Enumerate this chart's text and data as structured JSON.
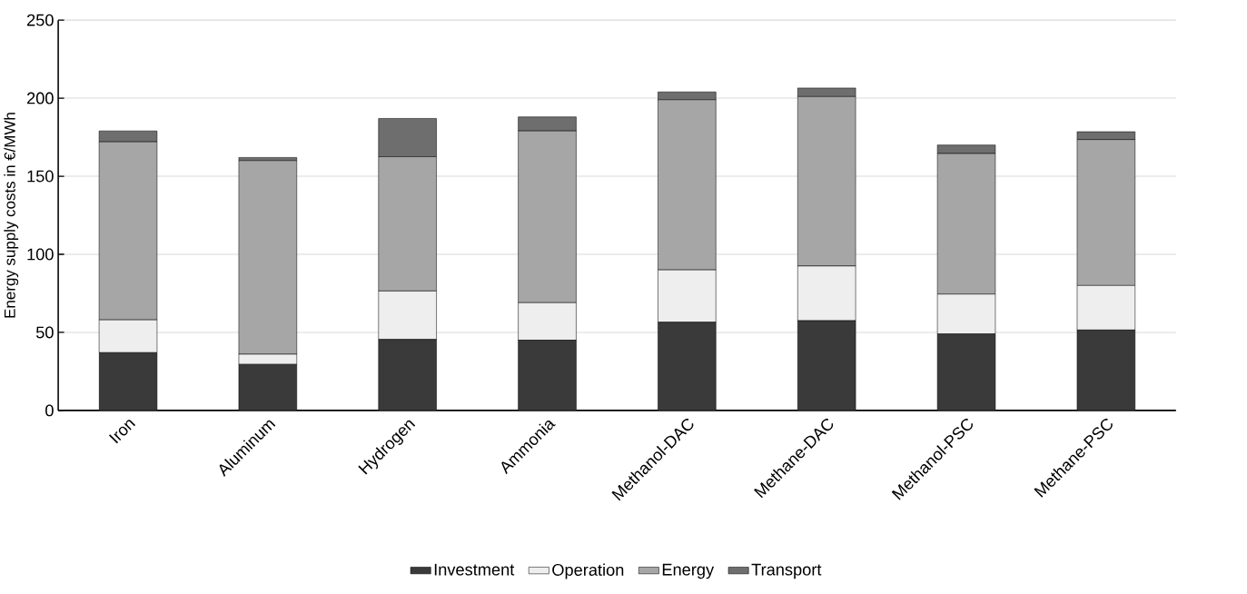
{
  "chart_data": {
    "type": "bar",
    "stacked": true,
    "ylabel": "Energy supply costs in €/MWh",
    "categories": [
      "Iron",
      "Aluminum",
      "Hydrogen",
      "Ammonia",
      "Methanol-DAC",
      "Methane-DAC",
      "Methanol-PSC",
      "Methane-PSC"
    ],
    "series": [
      {
        "name": "Investment",
        "color": "#3a3a3a",
        "values": [
          37,
          29.5,
          45.5,
          45,
          56.5,
          57.5,
          49,
          51.5
        ]
      },
      {
        "name": "Operation",
        "color": "#eeeeee",
        "values": [
          21,
          6.5,
          31,
          24,
          33.5,
          35,
          25.5,
          28.5
        ]
      },
      {
        "name": "Energy",
        "color": "#a6a6a6",
        "values": [
          114,
          124,
          86,
          110,
          109,
          108.5,
          90,
          93.5
        ]
      },
      {
        "name": "Transport",
        "color": "#6e6e6e",
        "values": [
          7,
          2,
          24.5,
          9,
          5,
          5.5,
          5.5,
          5
        ]
      }
    ],
    "ylim": [
      0,
      250
    ],
    "yticks": [
      0,
      50,
      100,
      150,
      200,
      250
    ],
    "grid": "y",
    "legend": "bottom"
  }
}
